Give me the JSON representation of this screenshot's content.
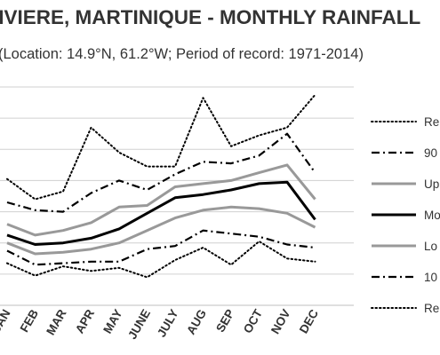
{
  "chart_data": {
    "type": "line",
    "title": "GD RIVIERE, MARTINIQUE - MONTHLY RAINFALL",
    "subtitle": "(Location: 14.9°N, 61.2°W; Period of record: 1971-2014)",
    "xlabel": "",
    "ylabel": "",
    "categories": [
      "JAN",
      "FEB",
      "MAR",
      "APR",
      "MAY",
      "JUNE",
      "JULY",
      "AUG",
      "SEP",
      "OCT",
      "NOV",
      "DEC"
    ],
    "ylim": [
      0,
      14
    ],
    "y_ticks": [
      0,
      2,
      4,
      6,
      8,
      10,
      12,
      14
    ],
    "grid": true,
    "legend_position": "right",
    "series": [
      {
        "name": "Re",
        "style": "dotted",
        "color": "#000000",
        "values": [
          8.1,
          6.8,
          7.3,
          11.4,
          9.8,
          8.9,
          8.9,
          13.3,
          10.2,
          10.9,
          11.4,
          13.5
        ]
      },
      {
        "name": "90",
        "style": "dashdot",
        "color": "#000000",
        "values": [
          6.6,
          6.1,
          6.0,
          7.2,
          8.0,
          7.4,
          8.4,
          9.2,
          9.1,
          9.6,
          11.0,
          8.5
        ]
      },
      {
        "name": "Up",
        "style": "solid",
        "color": "#999999",
        "values": [
          5.2,
          4.5,
          4.8,
          5.3,
          6.3,
          6.4,
          7.6,
          7.8,
          8.0,
          8.5,
          9.0,
          6.8
        ]
      },
      {
        "name": "Mo",
        "style": "solid",
        "color": "#000000",
        "values": [
          4.5,
          3.9,
          4.0,
          4.3,
          4.9,
          5.9,
          6.9,
          7.1,
          7.4,
          7.8,
          7.9,
          5.5
        ]
      },
      {
        "name": "Lo",
        "style": "solid",
        "color": "#999999",
        "values": [
          4.0,
          3.3,
          3.4,
          3.6,
          4.0,
          4.8,
          5.6,
          6.1,
          6.3,
          6.2,
          5.9,
          5.0
        ]
      },
      {
        "name": "10",
        "style": "dashdot",
        "color": "#000000",
        "values": [
          3.5,
          2.6,
          2.7,
          2.8,
          2.8,
          3.6,
          3.8,
          4.8,
          4.6,
          4.4,
          3.9,
          3.7
        ]
      },
      {
        "name": "Re",
        "style": "dotted",
        "color": "#000000",
        "values": [
          2.7,
          1.9,
          2.5,
          2.2,
          2.4,
          1.8,
          2.9,
          3.7,
          2.6,
          4.1,
          3.0,
          2.8
        ]
      }
    ]
  }
}
